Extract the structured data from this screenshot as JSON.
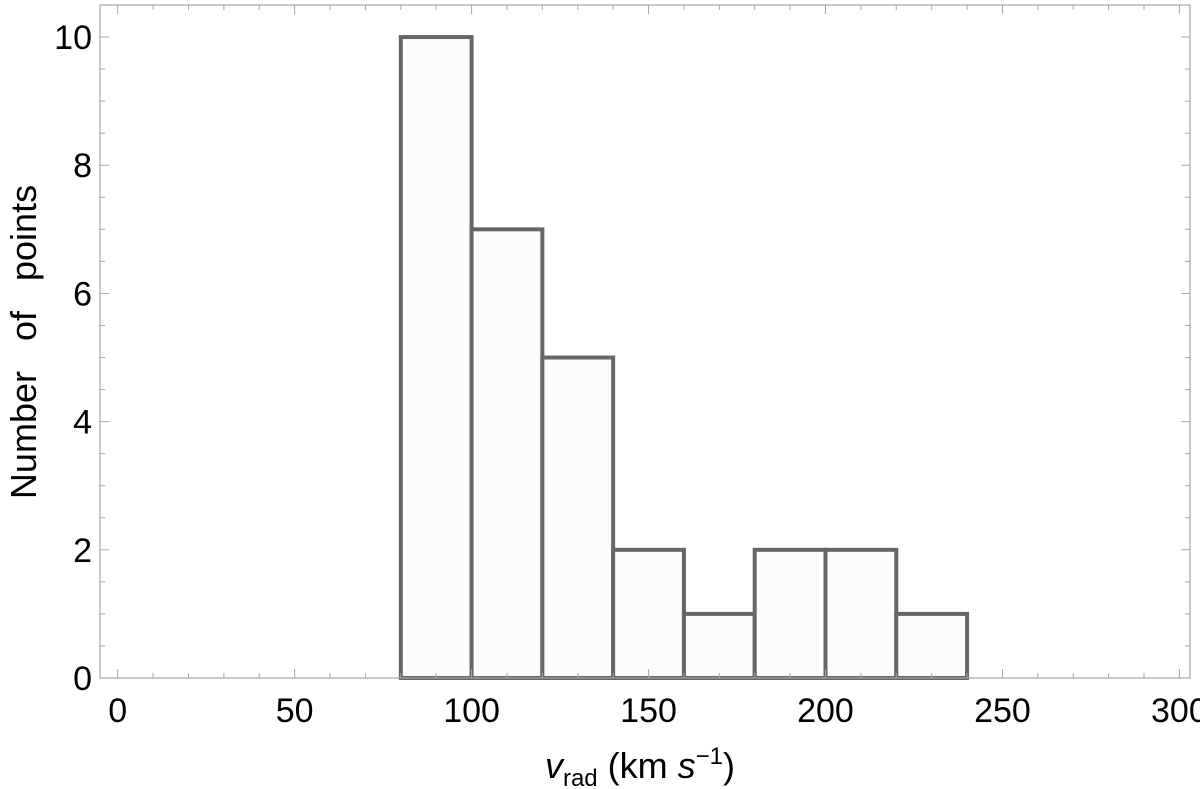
{
  "chart_data": {
    "type": "bar",
    "title": "",
    "xlabel_main": "v",
    "xlabel_sub": "rad",
    "xlabel_units_pre": " (km ",
    "xlabel_units_s": "s",
    "xlabel_units_exp": "−1",
    "xlabel_units_post": ")",
    "ylabel": "Number   of   points",
    "xlim": [
      -5,
      303
    ],
    "ylim": [
      0,
      10.5
    ],
    "x_ticks": [
      0,
      50,
      100,
      150,
      200,
      250,
      300
    ],
    "y_ticks": [
      0,
      2,
      4,
      6,
      8,
      10
    ],
    "bins": [
      {
        "x0": 80,
        "x1": 100,
        "count": 10
      },
      {
        "x0": 100,
        "x1": 120,
        "count": 7
      },
      {
        "x0": 120,
        "x1": 140,
        "count": 5
      },
      {
        "x0": 140,
        "x1": 160,
        "count": 2
      },
      {
        "x0": 160,
        "x1": 180,
        "count": 1
      },
      {
        "x0": 180,
        "x1": 200,
        "count": 2
      },
      {
        "x0": 200,
        "x1": 220,
        "count": 2
      },
      {
        "x0": 220,
        "x1": 240,
        "count": 1
      }
    ],
    "bar_fill": "#fcfcfc",
    "bar_stroke": "#666666",
    "frame_color": "#a6a6a6",
    "grid": false
  }
}
